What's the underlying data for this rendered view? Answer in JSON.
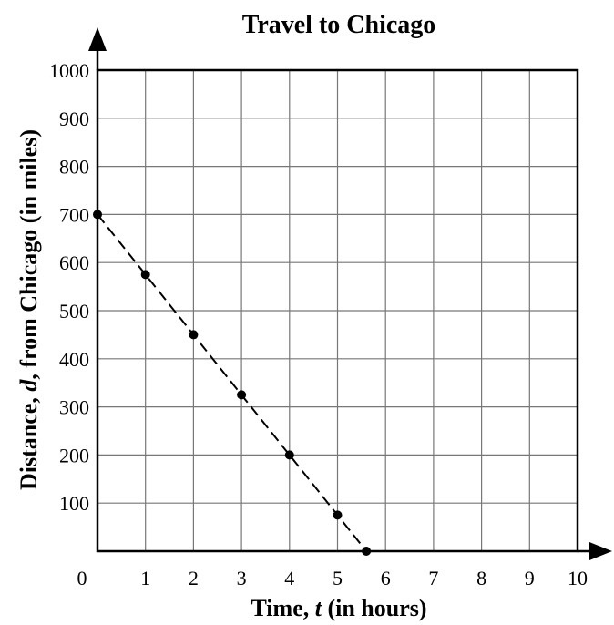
{
  "chart_data": {
    "type": "scatter",
    "title": "Travel to Chicago",
    "xlabel": {
      "prefix": "Time, ",
      "variable": "t",
      "suffix": " (in hours)"
    },
    "ylabel": {
      "prefix": "Distance, ",
      "variable": "d",
      "suffix": ", from Chicago (in miles)"
    },
    "xlim": [
      0,
      10
    ],
    "ylim": [
      0,
      1000
    ],
    "x_ticks": [
      "0",
      "1",
      "2",
      "3",
      "4",
      "5",
      "6",
      "7",
      "8",
      "9",
      "10"
    ],
    "y_ticks": [
      "100",
      "200",
      "300",
      "400",
      "500",
      "600",
      "700",
      "800",
      "900",
      "1000"
    ],
    "grid": true,
    "series": [
      {
        "points": [
          {
            "x": 0,
            "y": 700
          },
          {
            "x": 1,
            "y": 575
          },
          {
            "x": 2,
            "y": 450
          },
          {
            "x": 3,
            "y": 325
          },
          {
            "x": 4,
            "y": 200
          },
          {
            "x": 5,
            "y": 75
          },
          {
            "x": 5.6,
            "y": 0
          }
        ],
        "trend_line": {
          "from": [
            0,
            700
          ],
          "to": [
            5.6,
            0
          ],
          "style": "dashed"
        },
        "color": "#000000"
      }
    ]
  }
}
